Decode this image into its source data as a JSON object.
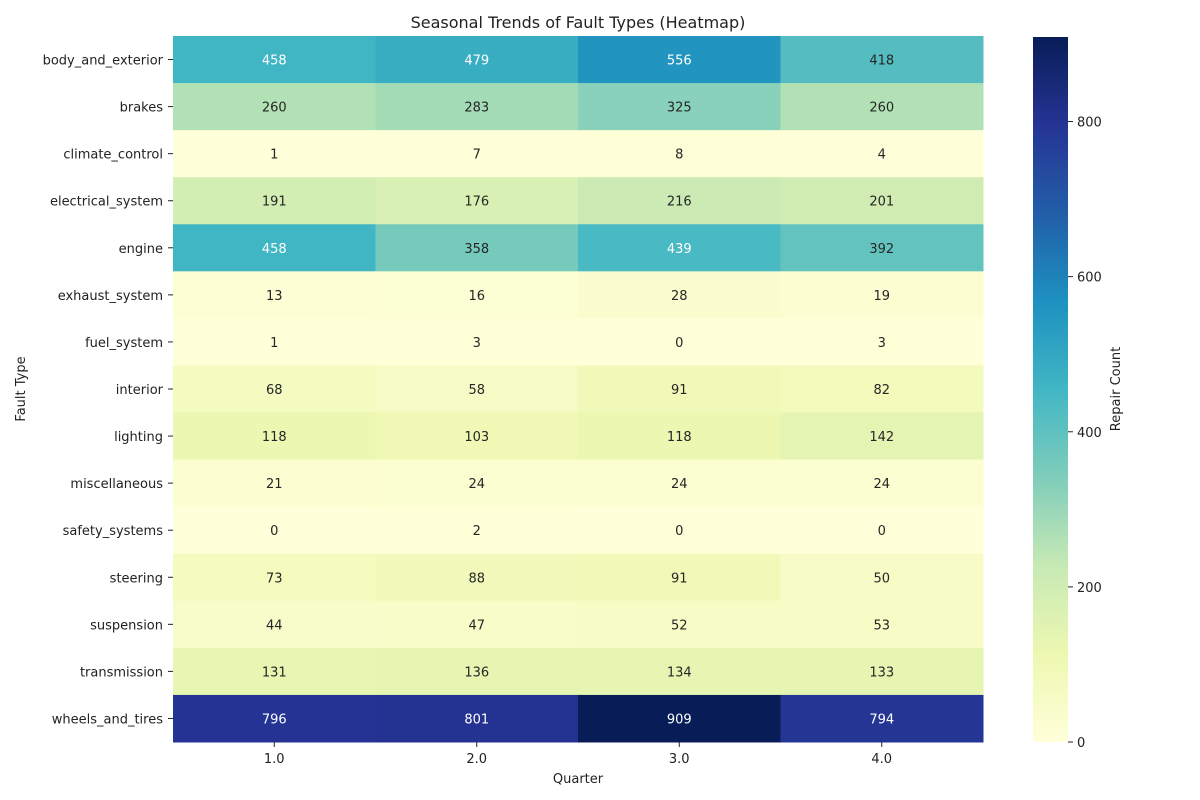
{
  "chart_data": {
    "type": "heatmap",
    "title": "Seasonal Trends of Fault Types (Heatmap)",
    "xlabel": "Quarter",
    "ylabel": "Fault Type",
    "colorbar_label": "Repair Count",
    "colormap": "YlGnBu",
    "vmin": 0,
    "vmax": 909,
    "colorbar_ticks": [
      0,
      200,
      400,
      600,
      800
    ],
    "x_categories": [
      "1.0",
      "2.0",
      "3.0",
      "4.0"
    ],
    "y_categories": [
      "body_and_exterior",
      "brakes",
      "climate_control",
      "electrical_system",
      "engine",
      "exhaust_system",
      "fuel_system",
      "interior",
      "lighting",
      "miscellaneous",
      "safety_systems",
      "steering",
      "suspension",
      "transmission",
      "wheels_and_tires"
    ],
    "values": [
      [
        458,
        479,
        556,
        418
      ],
      [
        260,
        283,
        325,
        260
      ],
      [
        1,
        7,
        8,
        4
      ],
      [
        191,
        176,
        216,
        201
      ],
      [
        458,
        358,
        439,
        392
      ],
      [
        13,
        16,
        28,
        19
      ],
      [
        1,
        3,
        0,
        3
      ],
      [
        68,
        58,
        91,
        82
      ],
      [
        118,
        103,
        118,
        142
      ],
      [
        21,
        24,
        24,
        24
      ],
      [
        0,
        2,
        0,
        0
      ],
      [
        73,
        88,
        91,
        50
      ],
      [
        44,
        47,
        52,
        53
      ],
      [
        131,
        136,
        134,
        133
      ],
      [
        796,
        801,
        909,
        794
      ]
    ]
  }
}
